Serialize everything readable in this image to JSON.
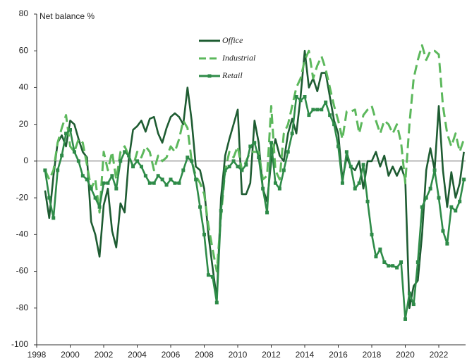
{
  "chart_data": {
    "type": "line",
    "ylabel": "Net balance %",
    "x": [
      1998.5,
      1998.75,
      1999,
      1999.25,
      1999.5,
      1999.75,
      2000,
      2000.25,
      2000.5,
      2000.75,
      2001,
      2001.25,
      2001.5,
      2001.75,
      2002,
      2002.25,
      2002.5,
      2002.75,
      2003,
      2003.25,
      2003.5,
      2003.75,
      2004,
      2004.25,
      2004.5,
      2004.75,
      2005,
      2005.25,
      2005.5,
      2005.75,
      2006,
      2006.25,
      2006.5,
      2006.75,
      2007,
      2007.25,
      2007.5,
      2007.75,
      2008,
      2008.25,
      2008.5,
      2008.75,
      2009,
      2009.25,
      2009.5,
      2009.75,
      2010,
      2010.25,
      2010.5,
      2010.75,
      2011,
      2011.25,
      2011.5,
      2011.75,
      2012,
      2012.25,
      2012.5,
      2012.75,
      2013,
      2013.25,
      2013.5,
      2013.75,
      2014,
      2014.25,
      2014.5,
      2014.75,
      2015,
      2015.25,
      2015.5,
      2015.75,
      2016,
      2016.25,
      2016.5,
      2016.75,
      2017,
      2017.25,
      2017.5,
      2017.75,
      2018,
      2018.25,
      2018.5,
      2018.75,
      2019,
      2019.25,
      2019.5,
      2019.75,
      2020,
      2020.25,
      2020.5,
      2020.75,
      2021,
      2021.25,
      2021.5,
      2021.75,
      2022,
      2022.25,
      2022.5,
      2022.75,
      2023,
      2023.25,
      2023.5
    ],
    "series": [
      {
        "name": "Office",
        "color": "#1e5c32",
        "dash": false,
        "markers": false,
        "values": [
          -16,
          -31,
          -8,
          10,
          14,
          8,
          22,
          20,
          12,
          5,
          2,
          -33,
          -40,
          -52,
          -24,
          -15,
          -38,
          -47,
          -23,
          -28,
          1,
          17,
          19,
          22,
          16,
          23,
          24,
          15,
          10,
          18,
          24,
          26,
          24,
          20,
          40,
          22,
          -3,
          -5,
          -15,
          -40,
          -58,
          -75,
          -20,
          3,
          12,
          20,
          28,
          -18,
          -18,
          -12,
          22,
          10,
          -15,
          -22,
          0,
          12,
          3,
          0,
          15,
          23,
          15,
          35,
          60,
          40,
          45,
          38,
          48,
          48,
          35,
          22,
          15,
          -10,
          2,
          -3,
          -5,
          0,
          -15,
          0,
          0,
          5,
          -3,
          3,
          -8,
          -3,
          -8,
          -3,
          -10,
          -80,
          -68,
          -65,
          -40,
          -5,
          7,
          -5,
          30,
          -5,
          -25,
          -6,
          -20,
          -12,
          5
        ]
      },
      {
        "name": "Industrial",
        "color": "#5cb85c",
        "dash": true,
        "markers": false,
        "values": [
          -5,
          -10,
          -5,
          10,
          18,
          25,
          8,
          5,
          12,
          10,
          -2,
          -15,
          -10,
          -28,
          5,
          -5,
          5,
          -10,
          5,
          8,
          3,
          -3,
          5,
          2,
          8,
          5,
          -5,
          3,
          0,
          2,
          8,
          5,
          12,
          22,
          18,
          0,
          -8,
          -12,
          -18,
          -35,
          -48,
          -60,
          -30,
          -5,
          5,
          2,
          8,
          -5,
          0,
          5,
          5,
          5,
          -10,
          -8,
          30,
          -5,
          -10,
          15,
          20,
          30,
          40,
          45,
          55,
          60,
          45,
          52,
          57,
          50,
          40,
          30,
          22,
          12,
          27,
          27,
          28,
          15,
          25,
          28,
          30,
          22,
          15,
          22,
          20,
          15,
          20,
          10,
          -12,
          20,
          45,
          55,
          63,
          55,
          60,
          60,
          58,
          30,
          15,
          8,
          15,
          5,
          12
        ]
      },
      {
        "name": "Retail",
        "color": "#2e8b48",
        "dash": false,
        "markers": true,
        "values": [
          -5,
          -20,
          -31,
          -5,
          3,
          15,
          17,
          5,
          0,
          -8,
          -10,
          -15,
          -20,
          -25,
          -12,
          -12,
          -8,
          -15,
          0,
          5,
          3,
          -3,
          0,
          -3,
          -8,
          -12,
          -12,
          -8,
          -10,
          -13,
          -10,
          -12,
          -12,
          -5,
          2,
          0,
          -10,
          -25,
          -40,
          -62,
          -63,
          -77,
          -27,
          -5,
          -3,
          0,
          -3,
          -5,
          -2,
          8,
          10,
          2,
          -15,
          -28,
          10,
          -12,
          -15,
          -5,
          5,
          15,
          35,
          33,
          35,
          25,
          28,
          28,
          28,
          32,
          25,
          20,
          8,
          -12,
          5,
          -3,
          -15,
          -12,
          -2,
          -22,
          -40,
          -52,
          -48,
          -55,
          -57,
          -57,
          -58,
          -55,
          -86,
          -72,
          -78,
          -55,
          -25,
          -20,
          -15,
          -5,
          -20,
          -38,
          -45,
          -25,
          -27,
          -22,
          -10
        ]
      }
    ],
    "xlim": [
      1998,
      2023.6
    ],
    "xticks": [
      1998,
      2000,
      2002,
      2004,
      2006,
      2008,
      2010,
      2012,
      2014,
      2016,
      2018,
      2020,
      2022
    ],
    "ylim": [
      -100,
      80
    ],
    "yticks": [
      -100,
      -80,
      -60,
      -40,
      -20,
      0,
      20,
      40,
      60,
      80
    ],
    "grid": false
  }
}
